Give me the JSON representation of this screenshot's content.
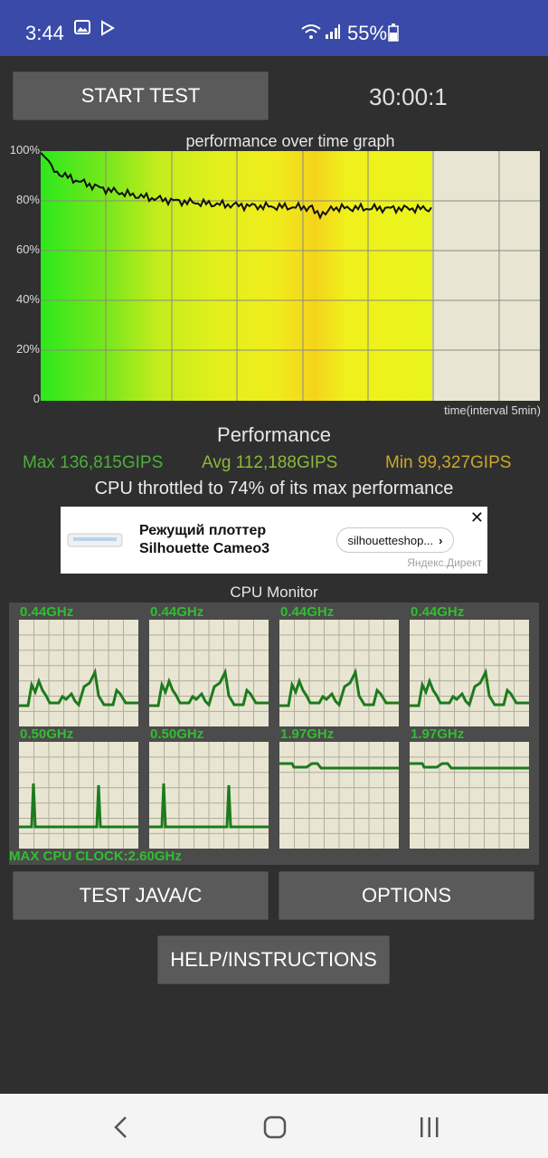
{
  "status_bar": {
    "time": "3:44",
    "battery": "55%"
  },
  "controls": {
    "start_label": "START TEST",
    "timer": "30:00:1"
  },
  "graph": {
    "title": "performance over time graph",
    "y_ticks": [
      "100%",
      "80%",
      "60%",
      "40%",
      "20%",
      "0"
    ],
    "x_note": "time(interval 5min)"
  },
  "performance": {
    "title": "Performance",
    "max": "Max 136,815GIPS",
    "avg": "Avg 112,188GIPS",
    "min": "Min 99,327GIPS",
    "throttle": "CPU throttled to 74% of its max performance",
    "colors": {
      "max": "#4caf3a",
      "avg": "#8bb83a",
      "min": "#c9a62e"
    }
  },
  "ad": {
    "title_line1": "Режущий плоттер",
    "title_line2": "Silhouette Cameo3",
    "link": "silhouetteshop...",
    "source": "Яндекс.Директ"
  },
  "cpu_monitor": {
    "title": "CPU Monitor",
    "cores": [
      "0.44GHz",
      "0.44GHz",
      "0.44GHz",
      "0.44GHz",
      "0.50GHz",
      "0.50GHz",
      "1.97GHz",
      "1.97GHz"
    ],
    "max_clock": "MAX CPU CLOCK:2.60GHz"
  },
  "buttons": {
    "test_java": "TEST JAVA/C",
    "options": "OPTIONS",
    "help": "HELP/INSTRUCTIONS"
  }
}
